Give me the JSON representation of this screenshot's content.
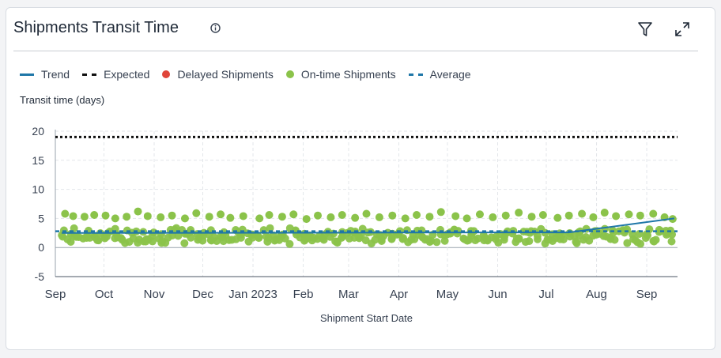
{
  "header": {
    "title": "Shipments Transit Time"
  },
  "icons": {
    "info": "info-icon",
    "filter": "filter-icon",
    "expand": "expand-icon"
  },
  "colors": {
    "trend": "#1f77a8",
    "expected": "#111111",
    "delayed": "#e0453a",
    "ontime": "#8bc34a",
    "average": "#1f77a8"
  },
  "chart_data": {
    "type": "scatter",
    "title": "",
    "xlabel": "Shipment Start Date",
    "ylabel": "Transit time (days)",
    "ylim": [
      -5,
      20
    ],
    "yticks": [
      20,
      15,
      10,
      5,
      0,
      -5
    ],
    "xlim": [
      "2022-09-01",
      "2023-09-20"
    ],
    "xticks": [
      {
        "date": "2022-09-01",
        "label": "Sep"
      },
      {
        "date": "2022-10-01",
        "label": "Oct"
      },
      {
        "date": "2022-11-01",
        "label": "Nov"
      },
      {
        "date": "2022-12-01",
        "label": "Dec"
      },
      {
        "date": "2023-01-01",
        "label": "Jan 2023"
      },
      {
        "date": "2023-02-01",
        "label": "Feb"
      },
      {
        "date": "2023-03-01",
        "label": "Mar"
      },
      {
        "date": "2023-04-01",
        "label": "Apr"
      },
      {
        "date": "2023-05-01",
        "label": "May"
      },
      {
        "date": "2023-06-01",
        "label": "Jun"
      },
      {
        "date": "2023-07-01",
        "label": "Jul"
      },
      {
        "date": "2023-08-01",
        "label": "Aug"
      },
      {
        "date": "2023-09-01",
        "label": "Sep"
      }
    ],
    "grid": true,
    "legend_position": "top-left",
    "legend": [
      "Trend",
      "Expected",
      "Delayed Shipments",
      "On-time Shipments",
      "Average"
    ],
    "expected": 19,
    "average": 2.8,
    "trend": [
      {
        "x": "2022-09-05",
        "y": 2.5
      },
      {
        "x": "2023-07-15",
        "y": 2.6
      },
      {
        "x": "2023-09-18",
        "y": 5.0
      }
    ],
    "series": [
      {
        "name": "On-time Shipments",
        "upper": [
          {
            "x": "2022-09-07",
            "y": 5.8
          },
          {
            "x": "2022-09-12",
            "y": 5.4
          },
          {
            "x": "2022-09-19",
            "y": 5.3
          },
          {
            "x": "2022-09-25",
            "y": 5.6
          },
          {
            "x": "2022-10-02",
            "y": 5.5
          },
          {
            "x": "2022-10-08",
            "y": 5.0
          },
          {
            "x": "2022-10-15",
            "y": 5.3
          },
          {
            "x": "2022-10-22",
            "y": 6.2
          },
          {
            "x": "2022-10-28",
            "y": 5.4
          },
          {
            "x": "2022-11-05",
            "y": 5.2
          },
          {
            "x": "2022-11-12",
            "y": 5.5
          },
          {
            "x": "2022-11-20",
            "y": 5.0
          },
          {
            "x": "2022-11-27",
            "y": 5.9
          },
          {
            "x": "2022-12-05",
            "y": 5.3
          },
          {
            "x": "2022-12-12",
            "y": 5.7
          },
          {
            "x": "2022-12-18",
            "y": 5.1
          },
          {
            "x": "2022-12-26",
            "y": 5.4
          },
          {
            "x": "2023-01-05",
            "y": 5.0
          },
          {
            "x": "2023-01-11",
            "y": 5.6
          },
          {
            "x": "2023-01-19",
            "y": 5.3
          },
          {
            "x": "2023-01-26",
            "y": 5.7
          },
          {
            "x": "2023-02-03",
            "y": 4.9
          },
          {
            "x": "2023-02-10",
            "y": 5.5
          },
          {
            "x": "2023-02-18",
            "y": 5.2
          },
          {
            "x": "2023-02-25",
            "y": 5.6
          },
          {
            "x": "2023-03-05",
            "y": 5.1
          },
          {
            "x": "2023-03-12",
            "y": 5.8
          },
          {
            "x": "2023-03-20",
            "y": 5.2
          },
          {
            "x": "2023-03-28",
            "y": 5.5
          },
          {
            "x": "2023-04-05",
            "y": 5.0
          },
          {
            "x": "2023-04-12",
            "y": 5.6
          },
          {
            "x": "2023-04-20",
            "y": 5.3
          },
          {
            "x": "2023-04-27",
            "y": 6.1
          },
          {
            "x": "2023-05-06",
            "y": 5.4
          },
          {
            "x": "2023-05-13",
            "y": 5.0
          },
          {
            "x": "2023-05-21",
            "y": 5.7
          },
          {
            "x": "2023-05-29",
            "y": 5.2
          },
          {
            "x": "2023-06-06",
            "y": 5.5
          },
          {
            "x": "2023-06-14",
            "y": 6.0
          },
          {
            "x": "2023-06-22",
            "y": 5.3
          },
          {
            "x": "2023-06-29",
            "y": 5.6
          },
          {
            "x": "2023-07-08",
            "y": 5.1
          },
          {
            "x": "2023-07-15",
            "y": 5.5
          },
          {
            "x": "2023-07-23",
            "y": 5.8
          },
          {
            "x": "2023-07-30",
            "y": 5.2
          },
          {
            "x": "2023-08-06",
            "y": 6.0
          },
          {
            "x": "2023-08-13",
            "y": 5.4
          },
          {
            "x": "2023-08-21",
            "y": 5.7
          },
          {
            "x": "2023-08-28",
            "y": 5.5
          },
          {
            "x": "2023-09-05",
            "y": 5.8
          },
          {
            "x": "2023-09-12",
            "y": 5.2
          },
          {
            "x": "2023-09-17",
            "y": 4.9
          }
        ]
      }
    ],
    "cluster": {
      "series": "On-time Shipments",
      "x_from": "2022-09-05",
      "x_to": "2023-09-18",
      "y_min": 0.5,
      "y_max": 3.5
    }
  }
}
